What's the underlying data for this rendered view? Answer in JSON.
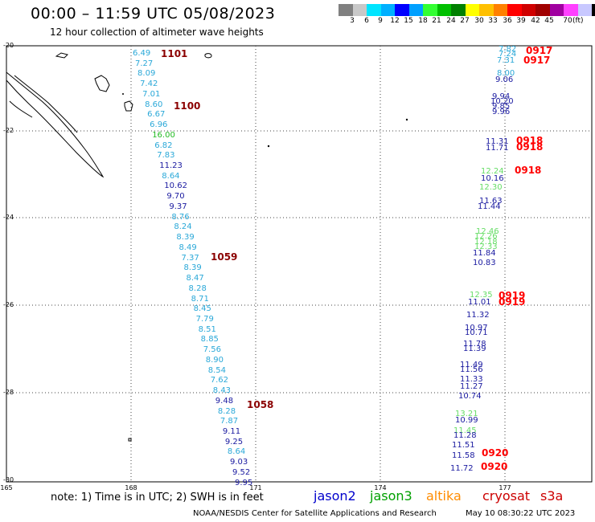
{
  "header": {
    "title": "00:00 – 11:59 UTC 05/08/2023",
    "subtitle": "12 hour collection of altimeter wave heights"
  },
  "colorbar": {
    "colors": [
      "#808080",
      "#c8c8c8",
      "#00e5ff",
      "#00b0ff",
      "#0000ff",
      "#00a0ff",
      "#33ff33",
      "#00c000",
      "#008000",
      "#ffff00",
      "#ffc000",
      "#ff8000",
      "#ff0000",
      "#d00000",
      "#a00000",
      "#a000a0",
      "#ff40ff",
      "#c8c8ff",
      "#000000"
    ],
    "ticks": [
      "3",
      "6",
      "9",
      "12",
      "15",
      "18",
      "21",
      "24",
      "27",
      "30",
      "33",
      "36",
      "39",
      "42",
      "45",
      "70"
    ],
    "unit": "(ft)"
  },
  "axes": {
    "lat_labels": [
      "-20",
      "-22",
      "-24",
      "-26",
      "-28",
      "-30"
    ],
    "lon_labels": [
      "165",
      "168",
      "171",
      "174",
      "177"
    ]
  },
  "tracks": {
    "west": [
      {
        "v": "6.49",
        "c": "#2aa8d8"
      },
      {
        "v": "7.27",
        "c": "#2aa8d8"
      },
      {
        "v": "8.09",
        "c": "#2aa8d8"
      },
      {
        "v": "7.42",
        "c": "#2aa8d8"
      },
      {
        "v": "7.01",
        "c": "#2aa8d8"
      },
      {
        "v": "8.60",
        "c": "#2aa8d8"
      },
      {
        "v": "6.67",
        "c": "#2aa8d8"
      },
      {
        "v": "6.96",
        "c": "#2aa8d8"
      },
      {
        "v": "16.00",
        "c": "#22bb22"
      },
      {
        "v": "6.82",
        "c": "#2aa8d8"
      },
      {
        "v": "7.83",
        "c": "#2aa8d8"
      },
      {
        "v": "11.23",
        "c": "#1a1aa0"
      },
      {
        "v": "8.64",
        "c": "#2aa8d8"
      },
      {
        "v": "10.62",
        "c": "#1a1aa0"
      },
      {
        "v": "9.70",
        "c": "#1a1aa0"
      },
      {
        "v": "9.37",
        "c": "#1a1aa0"
      },
      {
        "v": "8.76",
        "c": "#2aa8d8"
      },
      {
        "v": "8.24",
        "c": "#2aa8d8"
      },
      {
        "v": "8.39",
        "c": "#2aa8d8"
      },
      {
        "v": "8.49",
        "c": "#2aa8d8"
      },
      {
        "v": "7.37",
        "c": "#2aa8d8"
      },
      {
        "v": "8.39",
        "c": "#2aa8d8"
      },
      {
        "v": "8.47",
        "c": "#2aa8d8"
      },
      {
        "v": "8.28",
        "c": "#2aa8d8"
      },
      {
        "v": "8.71",
        "c": "#2aa8d8"
      },
      {
        "v": "8.45",
        "c": "#2aa8d8"
      },
      {
        "v": "7.79",
        "c": "#2aa8d8"
      },
      {
        "v": "8.51",
        "c": "#2aa8d8"
      },
      {
        "v": "8.85",
        "c": "#2aa8d8"
      },
      {
        "v": "7.56",
        "c": "#2aa8d8"
      },
      {
        "v": "8.90",
        "c": "#2aa8d8"
      },
      {
        "v": "8.54",
        "c": "#2aa8d8"
      },
      {
        "v": "7.62",
        "c": "#2aa8d8"
      },
      {
        "v": "8.43",
        "c": "#2aa8d8"
      },
      {
        "v": "9.48",
        "c": "#1a1aa0"
      },
      {
        "v": "8.28",
        "c": "#2aa8d8"
      },
      {
        "v": "7.87",
        "c": "#2aa8d8"
      },
      {
        "v": "9.11",
        "c": "#1a1aa0"
      },
      {
        "v": "9.25",
        "c": "#1a1aa0"
      },
      {
        "v": "8.64",
        "c": "#2aa8d8"
      },
      {
        "v": "9.03",
        "c": "#1a1aa0"
      },
      {
        "v": "9.52",
        "c": "#1a1aa0"
      },
      {
        "v": "9.95",
        "c": "#1a1aa0"
      }
    ],
    "east": [
      {
        "v": "7.82",
        "c": "#2aa8d8"
      },
      {
        "v": "7.24",
        "c": "#2aa8d8"
      },
      {
        "v": "7.31",
        "c": "#2aa8d8"
      },
      {
        "v": "8.00",
        "c": "#2aa8d8"
      },
      {
        "v": "9.06",
        "c": "#1a1aa0"
      },
      {
        "v": "9.94",
        "c": "#1a1aa0"
      },
      {
        "v": "10.20",
        "c": "#1a1aa0"
      },
      {
        "v": "9.85",
        "c": "#1a1aa0"
      },
      {
        "v": "9.96",
        "c": "#1a1aa0"
      },
      {
        "v": "11.31",
        "c": "#1a1aa0"
      },
      {
        "v": "11.71",
        "c": "#1a1aa0"
      },
      {
        "v": "12.24",
        "c": "#66dd66"
      },
      {
        "v": "10.16",
        "c": "#1a1aa0"
      },
      {
        "v": "12.30",
        "c": "#66dd66"
      },
      {
        "v": "11.63",
        "c": "#1a1aa0"
      },
      {
        "v": "11.44",
        "c": "#1a1aa0"
      },
      {
        "v": "12.46",
        "c": "#66dd66"
      },
      {
        "v": "12.26",
        "c": "#66dd66"
      },
      {
        "v": "12.18",
        "c": "#66dd66"
      },
      {
        "v": "12.33",
        "c": "#66dd66"
      },
      {
        "v": "11.84",
        "c": "#1a1aa0"
      },
      {
        "v": "10.83",
        "c": "#1a1aa0"
      },
      {
        "v": "12.35",
        "c": "#66dd66"
      },
      {
        "v": "11.01",
        "c": "#1a1aa0"
      },
      {
        "v": "11.32",
        "c": "#1a1aa0"
      },
      {
        "v": "10.97",
        "c": "#1a1aa0"
      },
      {
        "v": "10.71",
        "c": "#1a1aa0"
      },
      {
        "v": "11.78",
        "c": "#1a1aa0"
      },
      {
        "v": "11.39",
        "c": "#1a1aa0"
      },
      {
        "v": "11.49",
        "c": "#1a1aa0"
      },
      {
        "v": "11.56",
        "c": "#1a1aa0"
      },
      {
        "v": "11.33",
        "c": "#1a1aa0"
      },
      {
        "v": "11.27",
        "c": "#1a1aa0"
      },
      {
        "v": "10.74",
        "c": "#1a1aa0"
      },
      {
        "v": "13.21",
        "c": "#66dd66"
      },
      {
        "v": "10.99",
        "c": "#1a1aa0"
      },
      {
        "v": "11.45",
        "c": "#66dd66"
      },
      {
        "v": "11.28",
        "c": "#1a1aa0"
      },
      {
        "v": "11.51",
        "c": "#1a1aa0"
      },
      {
        "v": "11.58",
        "c": "#1a1aa0"
      },
      {
        "v": "11.72",
        "c": "#1a1aa0"
      }
    ]
  },
  "pass_times": [
    {
      "t": "1101",
      "c": "#8b0000"
    },
    {
      "t": "1100",
      "c": "#8b0000"
    },
    {
      "t": "1059",
      "c": "#8b0000"
    },
    {
      "t": "1058",
      "c": "#8b0000"
    },
    {
      "t": "0917",
      "c": "#ff0000"
    },
    {
      "t": "0917",
      "c": "#ff0000"
    },
    {
      "t": "0918",
      "c": "#ff0000"
    },
    {
      "t": "0918",
      "c": "#ff0000"
    },
    {
      "t": "0918",
      "c": "#ff0000"
    },
    {
      "t": "0919",
      "c": "#ff0000"
    },
    {
      "t": "0919",
      "c": "#ff0000"
    },
    {
      "t": "0920",
      "c": "#ff0000"
    },
    {
      "t": "0920",
      "c": "#ff0000"
    }
  ],
  "note": "note: 1) Time is in UTC; 2) SWH is in feet",
  "missions": [
    {
      "name": "jason2",
      "color": "#0000cc"
    },
    {
      "name": "jason3",
      "color": "#00a000"
    },
    {
      "name": "altika",
      "color": "#ff8c00"
    },
    {
      "name": "cryosat",
      "color": "#cc0000"
    },
    {
      "name": "s3a",
      "color": "#cc0000"
    }
  ],
  "footer": {
    "credit": "NOAA/NESDIS Center for Satellite Applications and Research",
    "date": "May 10 08:30:22 UTC 2023"
  }
}
